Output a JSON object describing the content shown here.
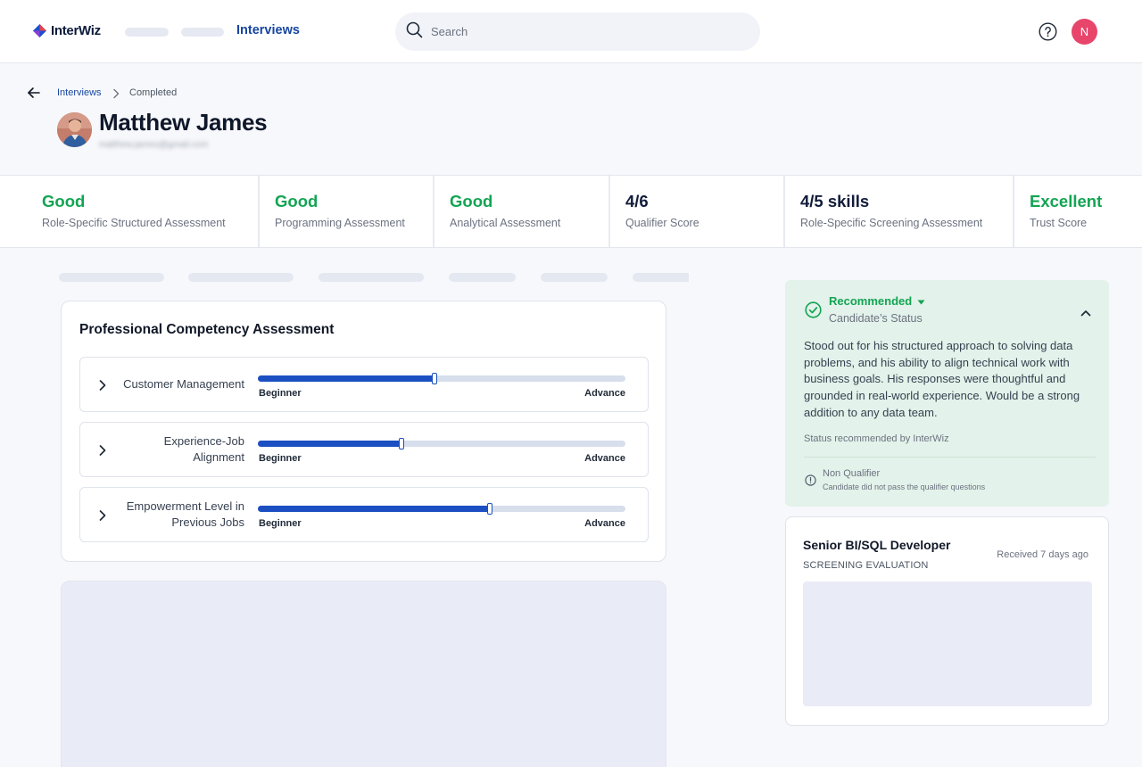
{
  "header": {
    "logo_text": "InterWiz",
    "nav_active": "Interviews",
    "search_placeholder": "Search",
    "avatar_initial": "N"
  },
  "breadcrumb": {
    "link": "Interviews",
    "current": "Completed"
  },
  "candidate": {
    "name": "Matthew James",
    "email": "matthew.james@gmail.com"
  },
  "scores": [
    {
      "value": "Good",
      "label": "Role-Specific Structured Assessment",
      "color": "#13a453"
    },
    {
      "value": "Good",
      "label": "Programming Assessment",
      "color": "#13a453"
    },
    {
      "value": "Good",
      "label": "Analytical Assessment",
      "color": "#13a453"
    },
    {
      "value": "4/6",
      "label": "Qualifier Score",
      "color": "#111c3a"
    },
    {
      "value": "4/5 skills",
      "label": "Role-Specific Screening Assessment",
      "color": "#111c3a"
    },
    {
      "value": "Excellent",
      "label": "Trust Score",
      "color": "#13a453"
    }
  ],
  "competency": {
    "title": "Professional Competency Assessment",
    "items": [
      {
        "label_lines": [
          "Customer Management"
        ],
        "low": "Beginner",
        "high": "Advance",
        "level": 0.48
      },
      {
        "label_lines": [
          "Experience-Job",
          "Alignment"
        ],
        "low": "Beginner",
        "high": "Advance",
        "level": 0.39
      },
      {
        "label_lines": [
          "Empowerment Level in",
          "Previous Jobs"
        ],
        "low": "Beginner",
        "high": "Advance",
        "level": 0.63
      }
    ]
  },
  "status": {
    "title": "Recommended",
    "subtitle": "Candidate’s Status",
    "body": "Stood out for his structured approach to solving data problems, and his ability to align technical work with business goals. His responses were thoughtful and grounded in real-world experience. Would be a strong addition to any data team.",
    "by": "Status recommended by InterWiz",
    "nq_title": "Non Qualifier",
    "nq_sub": "Candidate did not pass the qualifier questions"
  },
  "job": {
    "title": "Senior BI/SQL Developer",
    "subtitle": "SCREENING EVALUATION",
    "received": "Received 7 days ago"
  }
}
